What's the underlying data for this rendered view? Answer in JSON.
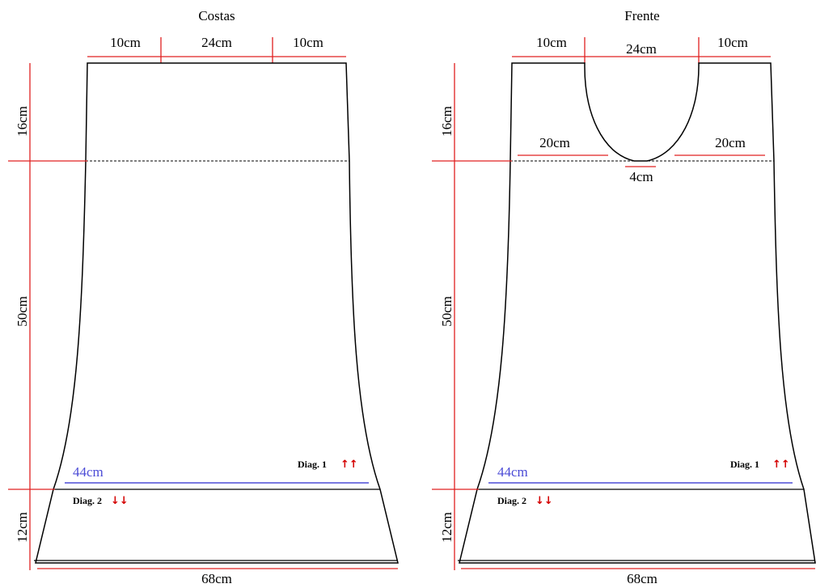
{
  "colors": {
    "outline": "#000000",
    "measure": "#e02020",
    "highlight": "#4b4bd6",
    "arrow": "#d40000"
  },
  "back": {
    "title": "Costas",
    "top_left": "10cm",
    "top_center": "24cm",
    "top_right": "10cm",
    "height_upper": "16cm",
    "height_middle": "50cm",
    "height_lower": "12cm",
    "hem_width": "68cm",
    "waist_width": "44cm",
    "diag1": "Diag. 1",
    "diag1_arrows": "↑↑",
    "diag2": "Diag. 2",
    "diag2_arrows": "↓↓"
  },
  "front": {
    "title": "Frente",
    "top_left": "10cm",
    "top_center": "24cm",
    "top_right": "10cm",
    "neck_left": "20cm",
    "neck_right": "20cm",
    "neck_bottom": "4cm",
    "height_upper": "16cm",
    "height_middle": "50cm",
    "height_lower": "12cm",
    "hem_width": "68cm",
    "waist_width": "44cm",
    "diag1": "Diag. 1",
    "diag1_arrows": "↑↑",
    "diag2": "Diag. 2",
    "diag2_arrows": "↓↓"
  }
}
